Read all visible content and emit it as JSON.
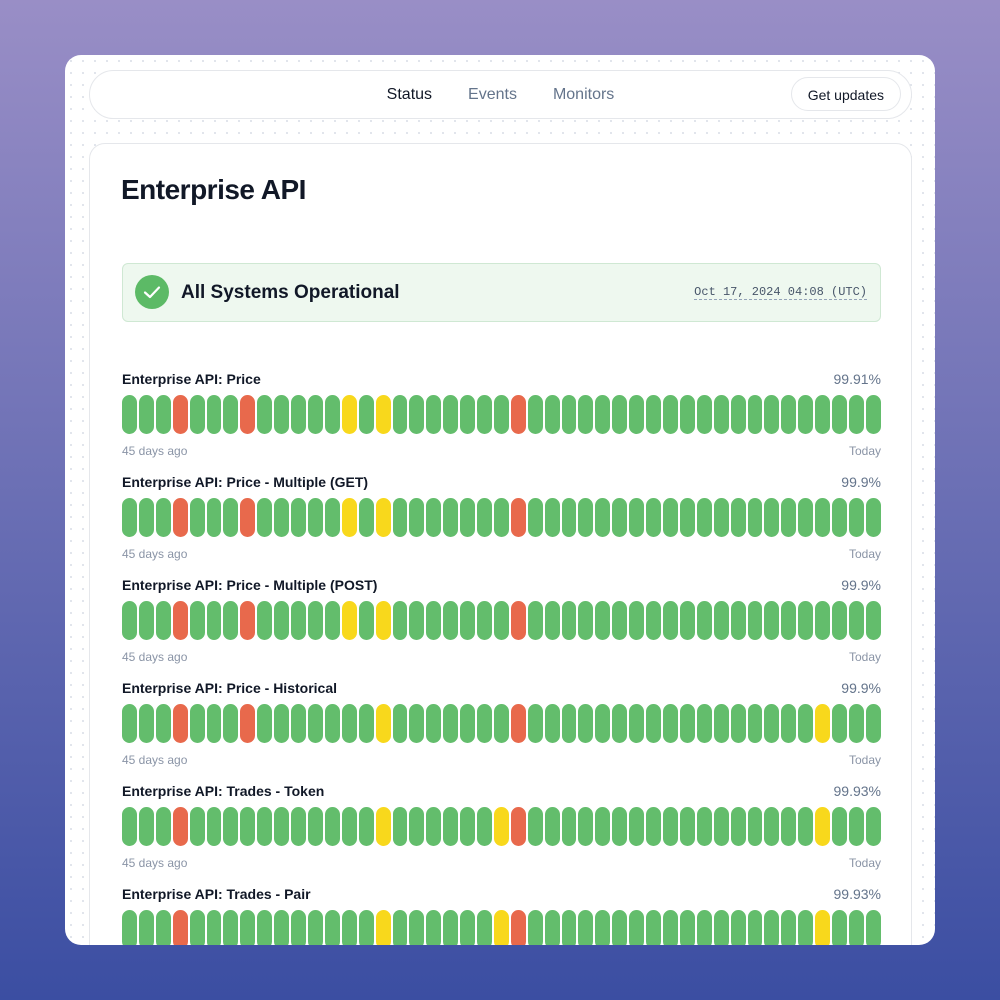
{
  "nav": {
    "items": [
      "Status",
      "Events",
      "Monitors"
    ],
    "button": "Get updates"
  },
  "page": {
    "title": "Enterprise API"
  },
  "banner": {
    "text": "All Systems Operational",
    "timestamp": "Oct 17, 2024 04:08 (UTC)"
  },
  "range": {
    "start": "45 days ago",
    "end": "Today"
  },
  "monitors": [
    {
      "name": "Enterprise API: Price",
      "uptime": "99.91%",
      "bars": [
        "#63bd6c",
        "#63bd6c",
        "#63bd6c",
        "#e8694c",
        "#63bd6c",
        "#63bd6c",
        "#63bd6c",
        "#e8694c",
        "#63bd6c",
        "#63bd6c",
        "#63bd6c",
        "#63bd6c",
        "#63bd6c",
        "#f8d81c",
        "#63bd6c",
        "#f8d81c",
        "#63bd6c",
        "#63bd6c",
        "#63bd6c",
        "#63bd6c",
        "#63bd6c",
        "#63bd6c",
        "#63bd6c",
        "#e8694c",
        "#63bd6c",
        "#63bd6c",
        "#63bd6c",
        "#63bd6c",
        "#63bd6c",
        "#63bd6c",
        "#63bd6c",
        "#63bd6c",
        "#63bd6c",
        "#63bd6c",
        "#63bd6c",
        "#63bd6c",
        "#63bd6c",
        "#63bd6c",
        "#63bd6c",
        "#63bd6c",
        "#63bd6c",
        "#63bd6c",
        "#63bd6c",
        "#63bd6c",
        "#63bd6c"
      ]
    },
    {
      "name": "Enterprise API: Price - Multiple (GET)",
      "uptime": "99.9%",
      "bars": [
        "#63bd6c",
        "#63bd6c",
        "#63bd6c",
        "#e8694c",
        "#63bd6c",
        "#63bd6c",
        "#63bd6c",
        "#e8694c",
        "#63bd6c",
        "#63bd6c",
        "#63bd6c",
        "#63bd6c",
        "#63bd6c",
        "#f8d81c",
        "#63bd6c",
        "#f8d81c",
        "#63bd6c",
        "#63bd6c",
        "#63bd6c",
        "#63bd6c",
        "#63bd6c",
        "#63bd6c",
        "#63bd6c",
        "#e8694c",
        "#63bd6c",
        "#63bd6c",
        "#63bd6c",
        "#63bd6c",
        "#63bd6c",
        "#63bd6c",
        "#63bd6c",
        "#63bd6c",
        "#63bd6c",
        "#63bd6c",
        "#63bd6c",
        "#63bd6c",
        "#63bd6c",
        "#63bd6c",
        "#63bd6c",
        "#63bd6c",
        "#63bd6c",
        "#63bd6c",
        "#63bd6c",
        "#63bd6c",
        "#63bd6c"
      ]
    },
    {
      "name": "Enterprise API: Price - Multiple (POST)",
      "uptime": "99.9%",
      "bars": [
        "#63bd6c",
        "#63bd6c",
        "#63bd6c",
        "#e8694c",
        "#63bd6c",
        "#63bd6c",
        "#63bd6c",
        "#e8694c",
        "#63bd6c",
        "#63bd6c",
        "#63bd6c",
        "#63bd6c",
        "#63bd6c",
        "#f8d81c",
        "#63bd6c",
        "#f8d81c",
        "#63bd6c",
        "#63bd6c",
        "#63bd6c",
        "#63bd6c",
        "#63bd6c",
        "#63bd6c",
        "#63bd6c",
        "#e8694c",
        "#63bd6c",
        "#63bd6c",
        "#63bd6c",
        "#63bd6c",
        "#63bd6c",
        "#63bd6c",
        "#63bd6c",
        "#63bd6c",
        "#63bd6c",
        "#63bd6c",
        "#63bd6c",
        "#63bd6c",
        "#63bd6c",
        "#63bd6c",
        "#63bd6c",
        "#63bd6c",
        "#63bd6c",
        "#63bd6c",
        "#63bd6c",
        "#63bd6c",
        "#63bd6c"
      ]
    },
    {
      "name": "Enterprise API: Price - Historical",
      "uptime": "99.9%",
      "bars": [
        "#63bd6c",
        "#63bd6c",
        "#63bd6c",
        "#e8694c",
        "#63bd6c",
        "#63bd6c",
        "#63bd6c",
        "#e8694c",
        "#63bd6c",
        "#63bd6c",
        "#63bd6c",
        "#63bd6c",
        "#63bd6c",
        "#63bd6c",
        "#63bd6c",
        "#f8d81c",
        "#63bd6c",
        "#63bd6c",
        "#63bd6c",
        "#63bd6c",
        "#63bd6c",
        "#63bd6c",
        "#63bd6c",
        "#e8694c",
        "#63bd6c",
        "#63bd6c",
        "#63bd6c",
        "#63bd6c",
        "#63bd6c",
        "#63bd6c",
        "#63bd6c",
        "#63bd6c",
        "#63bd6c",
        "#63bd6c",
        "#63bd6c",
        "#63bd6c",
        "#63bd6c",
        "#63bd6c",
        "#63bd6c",
        "#63bd6c",
        "#63bd6c",
        "#f8d81c",
        "#63bd6c",
        "#63bd6c",
        "#63bd6c"
      ]
    },
    {
      "name": "Enterprise API: Trades - Token",
      "uptime": "99.93%",
      "bars": [
        "#63bd6c",
        "#63bd6c",
        "#63bd6c",
        "#e8694c",
        "#63bd6c",
        "#63bd6c",
        "#63bd6c",
        "#63bd6c",
        "#63bd6c",
        "#63bd6c",
        "#63bd6c",
        "#63bd6c",
        "#63bd6c",
        "#63bd6c",
        "#63bd6c",
        "#f8d81c",
        "#63bd6c",
        "#63bd6c",
        "#63bd6c",
        "#63bd6c",
        "#63bd6c",
        "#63bd6c",
        "#f8d81c",
        "#e8694c",
        "#63bd6c",
        "#63bd6c",
        "#63bd6c",
        "#63bd6c",
        "#63bd6c",
        "#63bd6c",
        "#63bd6c",
        "#63bd6c",
        "#63bd6c",
        "#63bd6c",
        "#63bd6c",
        "#63bd6c",
        "#63bd6c",
        "#63bd6c",
        "#63bd6c",
        "#63bd6c",
        "#63bd6c",
        "#f8d81c",
        "#63bd6c",
        "#63bd6c",
        "#63bd6c"
      ]
    },
    {
      "name": "Enterprise API: Trades - Pair",
      "uptime": "99.93%",
      "bars": [
        "#63bd6c",
        "#63bd6c",
        "#63bd6c",
        "#e8694c",
        "#63bd6c",
        "#63bd6c",
        "#63bd6c",
        "#63bd6c",
        "#63bd6c",
        "#63bd6c",
        "#63bd6c",
        "#63bd6c",
        "#63bd6c",
        "#63bd6c",
        "#63bd6c",
        "#f8d81c",
        "#63bd6c",
        "#63bd6c",
        "#63bd6c",
        "#63bd6c",
        "#63bd6c",
        "#63bd6c",
        "#f8d81c",
        "#e8694c",
        "#63bd6c",
        "#63bd6c",
        "#63bd6c",
        "#63bd6c",
        "#63bd6c",
        "#63bd6c",
        "#63bd6c",
        "#63bd6c",
        "#63bd6c",
        "#63bd6c",
        "#63bd6c",
        "#63bd6c",
        "#63bd6c",
        "#63bd6c",
        "#63bd6c",
        "#63bd6c",
        "#63bd6c",
        "#f8d81c",
        "#63bd6c",
        "#63bd6c",
        "#63bd6c"
      ]
    }
  ]
}
